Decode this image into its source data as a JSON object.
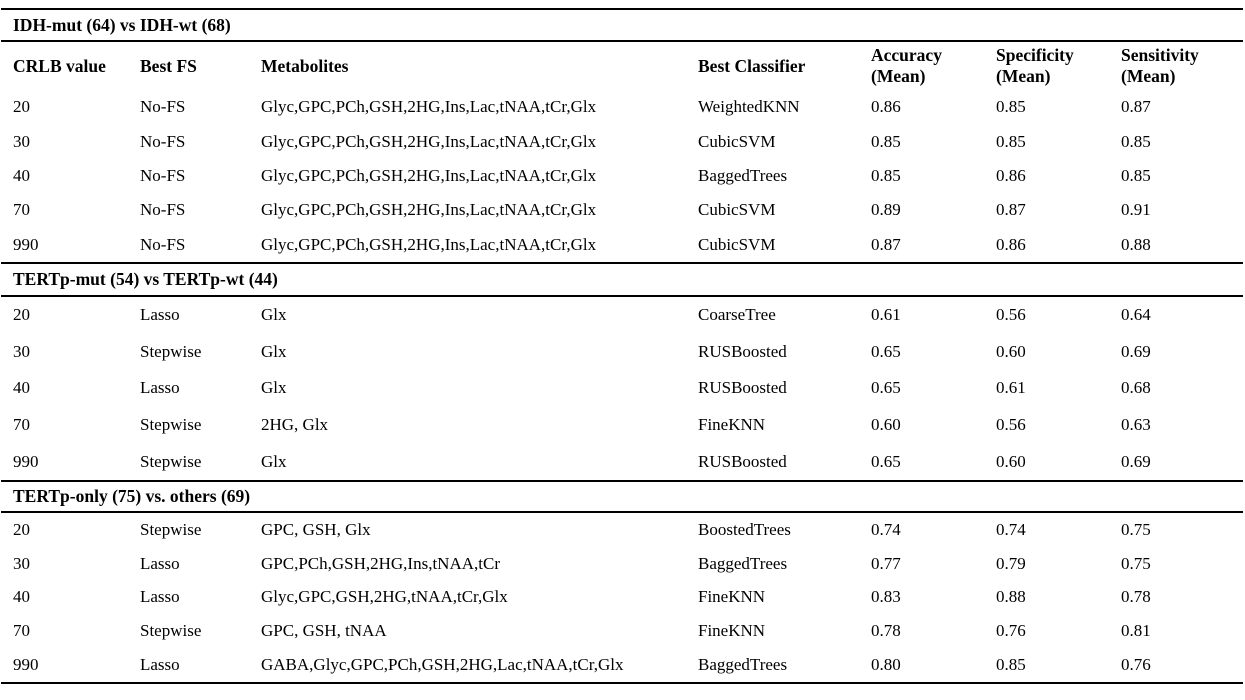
{
  "table": {
    "columns": [
      {
        "label": "CRLB value"
      },
      {
        "label": "Best FS"
      },
      {
        "label": "Metabolites"
      },
      {
        "label": "Best Classifier"
      },
      {
        "label": "Accuracy",
        "sub": "(Mean)"
      },
      {
        "label": "Specificity",
        "sub": "(Mean)"
      },
      {
        "label": "Sensitivity",
        "sub": "(Mean)"
      }
    ],
    "sections": [
      {
        "title": "IDH-mut (64) vs IDH-wt (68)",
        "rows": [
          [
            "20",
            "No-FS",
            "Glyc,GPC,PCh,GSH,2HG,Ins,Lac,tNAA,tCr,Glx",
            "WeightedKNN",
            "0.86",
            "0.85",
            "0.87"
          ],
          [
            "30",
            "No-FS",
            "Glyc,GPC,PCh,GSH,2HG,Ins,Lac,tNAA,tCr,Glx",
            "CubicSVM",
            "0.85",
            "0.85",
            "0.85"
          ],
          [
            "40",
            "No-FS",
            "Glyc,GPC,PCh,GSH,2HG,Ins,Lac,tNAA,tCr,Glx",
            "BaggedTrees",
            "0.85",
            "0.86",
            "0.85"
          ],
          [
            "70",
            "No-FS",
            "Glyc,GPC,PCh,GSH,2HG,Ins,Lac,tNAA,tCr,Glx",
            "CubicSVM",
            "0.89",
            "0.87",
            "0.91"
          ],
          [
            "990",
            "No-FS",
            "Glyc,GPC,PCh,GSH,2HG,Ins,Lac,tNAA,tCr,Glx",
            "CubicSVM",
            "0.87",
            "0.86",
            "0.88"
          ]
        ]
      },
      {
        "title": "TERTp-mut (54) vs TERTp-wt (44)",
        "rows": [
          [
            "20",
            "Lasso",
            "Glx",
            "CoarseTree",
            "0.61",
            "0.56",
            "0.64"
          ],
          [
            "30",
            "Stepwise",
            "Glx",
            "RUSBoosted",
            "0.65",
            "0.60",
            "0.69"
          ],
          [
            "40",
            "Lasso",
            "Glx",
            "RUSBoosted",
            "0.65",
            "0.61",
            "0.68"
          ],
          [
            "70",
            "Stepwise",
            "2HG, Glx",
            "FineKNN",
            "0.60",
            "0.56",
            "0.63"
          ],
          [
            "990",
            "Stepwise",
            "Glx",
            "RUSBoosted",
            "0.65",
            "0.60",
            "0.69"
          ]
        ]
      },
      {
        "title": "TERTp-only (75) vs. others (69)",
        "rows": [
          [
            "20",
            "Stepwise",
            "GPC, GSH, Glx",
            "BoostedTrees",
            "0.74",
            "0.74",
            "0.75"
          ],
          [
            "30",
            "Lasso",
            "GPC,PCh,GSH,2HG,Ins,tNAA,tCr",
            "BaggedTrees",
            "0.77",
            "0.79",
            "0.75"
          ],
          [
            "40",
            "Lasso",
            "Glyc,GPC,GSH,2HG,tNAA,tCr,Glx",
            "FineKNN",
            "0.83",
            "0.88",
            "0.78"
          ],
          [
            "70",
            "Stepwise",
            "GPC, GSH, tNAA",
            "FineKNN",
            "0.78",
            "0.76",
            "0.81"
          ],
          [
            "990",
            "Lasso",
            "GABA,Glyc,GPC,PCh,GSH,2HG,Lac,tNAA,tCr,Glx",
            "BaggedTrees",
            "0.80",
            "0.85",
            "0.76"
          ]
        ]
      }
    ]
  }
}
